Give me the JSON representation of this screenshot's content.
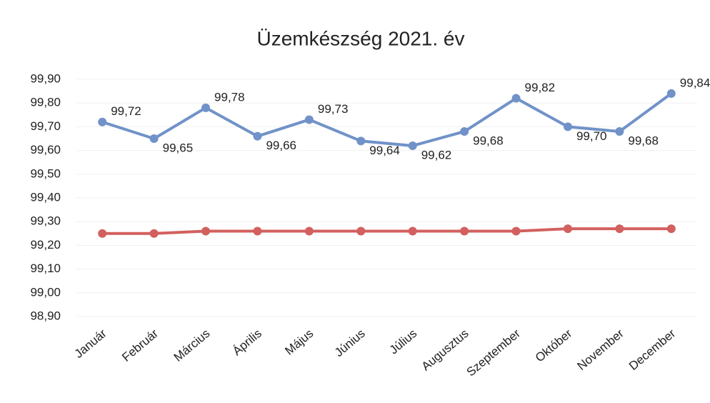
{
  "chart_data": {
    "type": "line",
    "title": "Üzemkészség 2021. év",
    "categories": [
      "Január",
      "Február",
      "Március",
      "Április",
      "Május",
      "Június",
      "Július",
      "Augusztus",
      "Szeptember",
      "Október",
      "November",
      "December"
    ],
    "series": [
      {
        "color": "#7092c8",
        "values": [
          99.72,
          99.65,
          99.78,
          99.66,
          99.73,
          99.64,
          99.62,
          99.68,
          99.82,
          99.7,
          99.68,
          99.84
        ],
        "value_labels": [
          "99,72",
          "99,65",
          "99,78",
          "99,66",
          "99,73",
          "99,64",
          "99,62",
          "99,68",
          "99,82",
          "99,70",
          "99,68",
          "99,84"
        ]
      },
      {
        "color": "#d2605e",
        "values": [
          99.25,
          99.25,
          99.26,
          99.26,
          99.26,
          99.26,
          99.26,
          99.26,
          99.26,
          99.27,
          99.27,
          99.27
        ]
      }
    ],
    "ylim": [
      98.9,
      99.9
    ],
    "yticks": [
      {
        "value": 98.9,
        "label": "98,90"
      },
      {
        "value": 99.0,
        "label": "99,00"
      },
      {
        "value": 99.1,
        "label": "99,10"
      },
      {
        "value": 99.2,
        "label": "99,20"
      },
      {
        "value": 99.3,
        "label": "99,30"
      },
      {
        "value": 99.4,
        "label": "99,40"
      },
      {
        "value": 99.5,
        "label": "99,50"
      },
      {
        "value": 99.6,
        "label": "99,60"
      },
      {
        "value": 99.7,
        "label": "99,70"
      },
      {
        "value": 99.8,
        "label": "99,80"
      },
      {
        "value": 99.9,
        "label": "99,90"
      }
    ],
    "grid": true
  }
}
